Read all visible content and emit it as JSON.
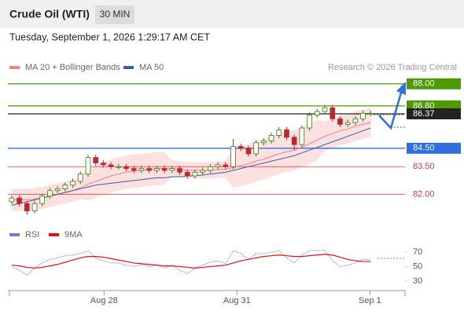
{
  "header": {
    "title": "Crude Oil (WTI)",
    "timeframe": "30 MIN"
  },
  "timestamp": "Tuesday, September 1, 2026 1:29:17 AM CET",
  "credit": "Research © 2026 Trading Central",
  "chart_data": [
    {
      "type": "candlestick",
      "xlim": [
        0,
        52
      ],
      "ylim": [
        80.4,
        88.5
      ],
      "up_color": "#3d7a12",
      "down_color": "#c0262d",
      "open": [
        81.6,
        81.8,
        81.5,
        81.1,
        81.5,
        81.9,
        82.2,
        82.3,
        82.5,
        82.7,
        83.1,
        84.0,
        83.7,
        83.6,
        83.5,
        83.5,
        83.4,
        83.3,
        83.4,
        83.3,
        83.4,
        83.3,
        83.4,
        83.2,
        83.0,
        83.2,
        83.3,
        83.5,
        83.6,
        83.5,
        84.6,
        84.5,
        84.2,
        84.8,
        84.9,
        85.2,
        85.5,
        85.1,
        84.7,
        85.6,
        86.3,
        86.5,
        86.7,
        86.1,
        85.8,
        85.9,
        86.1,
        86.4
      ],
      "high": [
        81.95,
        81.95,
        81.65,
        81.65,
        82.05,
        82.35,
        82.45,
        82.65,
        82.85,
        83.25,
        84.15,
        84.15,
        83.85,
        83.75,
        83.65,
        83.65,
        83.55,
        83.55,
        83.55,
        83.55,
        83.55,
        83.55,
        83.55,
        83.35,
        83.35,
        83.45,
        83.65,
        83.75,
        83.75,
        85.0,
        84.75,
        84.65,
        84.95,
        85.05,
        85.35,
        85.65,
        85.65,
        85.25,
        85.75,
        86.45,
        86.65,
        86.85,
        86.85,
        86.25,
        86.05,
        86.25,
        86.55,
        86.55
      ],
      "low": [
        81.45,
        81.35,
        80.9,
        80.95,
        81.35,
        81.75,
        82.05,
        82.15,
        82.35,
        82.55,
        82.95,
        83.55,
        83.45,
        83.35,
        83.35,
        83.25,
        83.15,
        83.15,
        83.15,
        83.15,
        83.15,
        83.15,
        83.05,
        82.85,
        82.85,
        83.05,
        83.15,
        83.35,
        83.35,
        83.35,
        84.35,
        84.05,
        84.05,
        84.65,
        84.75,
        85.05,
        84.95,
        84.4,
        84.55,
        85.45,
        86.15,
        86.35,
        85.95,
        85.65,
        85.65,
        85.75,
        85.95,
        86.25
      ],
      "close": [
        81.8,
        81.5,
        81.1,
        81.5,
        81.9,
        82.2,
        82.3,
        82.5,
        82.7,
        83.1,
        84.0,
        83.7,
        83.6,
        83.5,
        83.5,
        83.4,
        83.3,
        83.4,
        83.3,
        83.4,
        83.3,
        83.4,
        83.2,
        83.0,
        83.2,
        83.3,
        83.5,
        83.6,
        83.5,
        84.6,
        84.5,
        84.2,
        84.8,
        84.9,
        85.2,
        85.5,
        85.1,
        84.7,
        85.6,
        86.3,
        86.5,
        86.7,
        86.1,
        85.8,
        85.9,
        86.1,
        86.4,
        86.4
      ],
      "lines": [
        {
          "name": "MA 20 + Bollinger Bands",
          "color": "#f08080",
          "band_color": "#fde0e0",
          "values": [
            81.7,
            81.7,
            81.7,
            81.75,
            81.8,
            81.9,
            82.0,
            82.1,
            82.2,
            82.35,
            82.55,
            82.7,
            82.85,
            83.0,
            83.1,
            83.2,
            83.25,
            83.3,
            83.35,
            83.4,
            83.4,
            83.4,
            83.35,
            83.3,
            83.3,
            83.3,
            83.3,
            83.35,
            83.35,
            83.45,
            83.55,
            83.65,
            83.8,
            83.9,
            84.05,
            84.2,
            84.3,
            84.4,
            84.55,
            84.75,
            84.95,
            85.15,
            85.3,
            85.45,
            85.55,
            85.7,
            85.8,
            85.9
          ],
          "upper": [
            82.3,
            82.3,
            82.3,
            82.35,
            82.4,
            82.5,
            82.6,
            82.7,
            82.8,
            82.95,
            83.45,
            83.6,
            83.75,
            83.9,
            84.0,
            84.1,
            84.15,
            84.2,
            84.25,
            84.3,
            84.3,
            83.85,
            83.8,
            83.75,
            83.75,
            83.75,
            83.75,
            83.8,
            83.8,
            84.55,
            84.65,
            84.75,
            84.9,
            85.0,
            85.15,
            85.3,
            85.4,
            85.5,
            85.65,
            85.85,
            86.05,
            85.95,
            86.1,
            86.25,
            86.35,
            86.5,
            86.6,
            86.7
          ],
          "lower": [
            81.1,
            81.1,
            81.1,
            81.15,
            81.2,
            81.3,
            81.4,
            81.5,
            81.6,
            81.75,
            81.65,
            81.8,
            81.95,
            82.1,
            82.2,
            82.3,
            82.35,
            82.4,
            82.45,
            82.5,
            82.5,
            82.95,
            82.9,
            82.85,
            82.85,
            82.85,
            82.85,
            82.9,
            82.9,
            82.35,
            82.45,
            82.55,
            82.7,
            82.8,
            82.95,
            83.1,
            83.2,
            83.3,
            83.45,
            83.65,
            83.85,
            84.35,
            84.5,
            84.65,
            84.75,
            84.9,
            85.0,
            85.1
          ]
        },
        {
          "name": "MA 50",
          "color": "#3a5fa0",
          "values": [
            81.4,
            81.5,
            81.6,
            81.7,
            81.8,
            81.9,
            82.0,
            82.1,
            82.2,
            82.3,
            82.4,
            82.5,
            82.55,
            82.6,
            82.65,
            82.7,
            82.75,
            82.8,
            82.85,
            82.9,
            82.9,
            82.95,
            82.95,
            83.0,
            83.0,
            83.05,
            83.1,
            83.15,
            83.2,
            83.3,
            83.4,
            83.5,
            83.6,
            83.7,
            83.8,
            83.9,
            84.0,
            84.1,
            84.25,
            84.4,
            84.55,
            84.7,
            84.85,
            85.0,
            85.15,
            85.3,
            85.45,
            85.6
          ]
        }
      ],
      "levels": [
        {
          "value": 88,
          "label": "88.00",
          "color": "#4e9a06",
          "kind": "box"
        },
        {
          "value": 86.8,
          "label": "86.80",
          "color": "#4e9a06",
          "kind": "box"
        },
        {
          "value": 86.37,
          "label": "86.37",
          "color": "#222222",
          "kind": "box"
        },
        {
          "value": 84.5,
          "label": "84.50",
          "color": "#2e6fdb",
          "kind": "box"
        },
        {
          "value": 83.5,
          "label": "83.50",
          "color": "#d9363e",
          "kind": "text"
        },
        {
          "value": 82,
          "label": "82.00",
          "color": "#d9363e",
          "kind": "text"
        }
      ]
    },
    {
      "type": "line",
      "xlim": [
        0,
        52
      ],
      "ylim": [
        17,
        82
      ],
      "yticks": [
        70,
        50,
        30
      ],
      "xticks": [
        {
          "value": 12.6,
          "label": "Aug 28"
        },
        {
          "value": 30,
          "label": "Aug 31"
        },
        {
          "value": 47.4,
          "label": "Sep 1"
        }
      ],
      "series": [
        {
          "name": "RSI",
          "color": "#6b7fd7",
          "dashed": true,
          "values": [
            50,
            45,
            38,
            48,
            55,
            60,
            62,
            65,
            66,
            68,
            72,
            62,
            58,
            55,
            55,
            52,
            50,
            53,
            50,
            52,
            48,
            52,
            45,
            40,
            48,
            52,
            56,
            58,
            54,
            72,
            68,
            60,
            68,
            68,
            70,
            72,
            62,
            55,
            66,
            72,
            72,
            73,
            58,
            50,
            52,
            55,
            60,
            60
          ]
        },
        {
          "name": "9MA",
          "color": "#e01010",
          "dashed": false,
          "values": [
            52,
            51,
            49,
            48,
            49,
            51,
            53,
            56,
            59,
            62,
            64,
            64,
            63,
            61,
            59,
            57,
            55,
            54,
            53,
            52,
            51,
            51,
            50,
            49,
            48,
            49,
            50,
            51,
            52,
            55,
            58,
            60,
            62,
            64,
            65,
            66,
            65,
            64,
            64,
            65,
            66,
            67,
            66,
            63,
            60,
            58,
            57,
            57
          ]
        }
      ]
    }
  ]
}
